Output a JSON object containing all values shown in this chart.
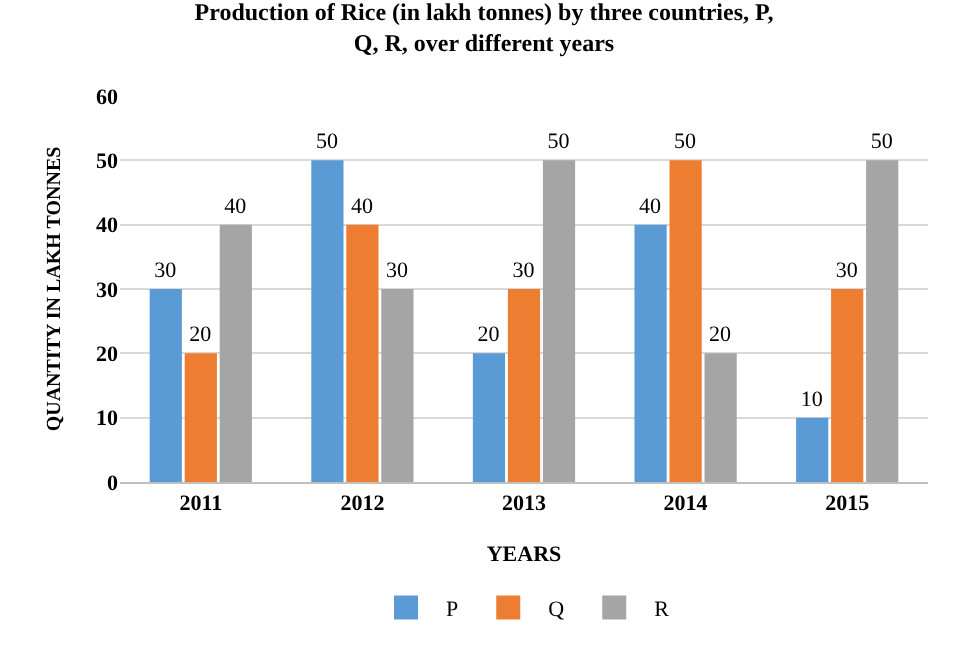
{
  "chart_data": {
    "type": "bar",
    "title": "Production of Rice (in lakh tonnes) by three countries, P, Q, R, over different years",
    "xlabel": "YEARS",
    "ylabel": "QUANTITY IN LAKH TONNES",
    "categories": [
      "2011",
      "2012",
      "2013",
      "2014",
      "2015"
    ],
    "series": [
      {
        "name": "P",
        "color": "#5b9bd5",
        "values": [
          30,
          50,
          20,
          40,
          10
        ]
      },
      {
        "name": "Q",
        "color": "#ed7d31",
        "values": [
          20,
          40,
          30,
          50,
          30
        ]
      },
      {
        "name": "R",
        "color": "#a5a5a5",
        "values": [
          40,
          30,
          50,
          20,
          50
        ]
      }
    ],
    "ylim": [
      0,
      60
    ],
    "yticks": [
      0,
      10,
      20,
      30,
      40,
      50,
      60
    ],
    "grid": "y",
    "legend": "bottom",
    "data_labels": true
  }
}
